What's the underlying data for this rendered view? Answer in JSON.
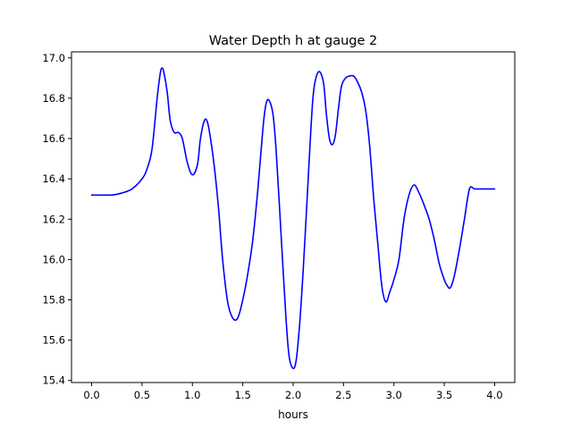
{
  "chart_data": {
    "type": "line",
    "title": "Water Depth h at gauge 2",
    "xlabel": "hours",
    "ylabel": "",
    "xlim": [
      -0.2,
      4.2
    ],
    "ylim": [
      15.39,
      17.03
    ],
    "xticks": [
      "0.0",
      "0.5",
      "1.0",
      "1.5",
      "2.0",
      "2.5",
      "3.0",
      "3.5",
      "4.0"
    ],
    "yticks": [
      "15.4",
      "15.6",
      "15.8",
      "16.0",
      "16.2",
      "16.4",
      "16.6",
      "16.8",
      "17.0"
    ],
    "grid": false,
    "line_color": "#0000ff",
    "series": [
      {
        "x": [
          0.0,
          0.2,
          0.3,
          0.4,
          0.5,
          0.55,
          0.6,
          0.65,
          0.68,
          0.7,
          0.72,
          0.75,
          0.78,
          0.82,
          0.86,
          0.9,
          0.95,
          1.0,
          1.05,
          1.08,
          1.12,
          1.15,
          1.18,
          1.22,
          1.26,
          1.3,
          1.35,
          1.4,
          1.45,
          1.5,
          1.55,
          1.6,
          1.65,
          1.7,
          1.73,
          1.76,
          1.8,
          1.83,
          1.86,
          1.9,
          1.93,
          1.96,
          2.0,
          2.03,
          2.06,
          2.08,
          2.1,
          2.13,
          2.16,
          2.2,
          2.25,
          2.3,
          2.33,
          2.36,
          2.39,
          2.42,
          2.45,
          2.48,
          2.52,
          2.56,
          2.6,
          2.64,
          2.68,
          2.72,
          2.76,
          2.8,
          2.84,
          2.88,
          2.92,
          2.96,
          3.0,
          3.05,
          3.1,
          3.15,
          3.2,
          3.25,
          3.3,
          3.35,
          3.4,
          3.45,
          3.5,
          3.53,
          3.56,
          3.6,
          3.65,
          3.7,
          3.75,
          3.8,
          3.85,
          3.88,
          3.91,
          3.94,
          3.97,
          4.0
        ],
        "y": [
          16.32,
          16.32,
          16.33,
          16.35,
          16.4,
          16.45,
          16.55,
          16.8,
          16.92,
          16.95,
          16.92,
          16.83,
          16.69,
          16.63,
          16.63,
          16.6,
          16.48,
          16.42,
          16.47,
          16.6,
          16.69,
          16.68,
          16.6,
          16.45,
          16.25,
          16.0,
          15.79,
          15.71,
          15.71,
          15.8,
          15.93,
          16.1,
          16.35,
          16.65,
          16.77,
          16.79,
          16.72,
          16.55,
          16.3,
          15.95,
          15.7,
          15.52,
          15.46,
          15.5,
          15.65,
          15.79,
          15.95,
          16.22,
          16.5,
          16.82,
          16.93,
          16.88,
          16.72,
          16.6,
          16.57,
          16.62,
          16.75,
          16.86,
          16.9,
          16.91,
          16.91,
          16.88,
          16.83,
          16.74,
          16.56,
          16.3,
          16.08,
          15.87,
          15.79,
          15.84,
          15.9,
          16.0,
          16.2,
          16.32,
          16.37,
          16.33,
          16.27,
          16.2,
          16.1,
          15.98,
          15.9,
          15.87,
          15.86,
          15.92,
          16.05,
          16.2,
          16.35,
          16.35,
          16.35,
          16.35,
          16.35,
          16.35,
          16.35,
          16.35
        ]
      }
    ]
  }
}
